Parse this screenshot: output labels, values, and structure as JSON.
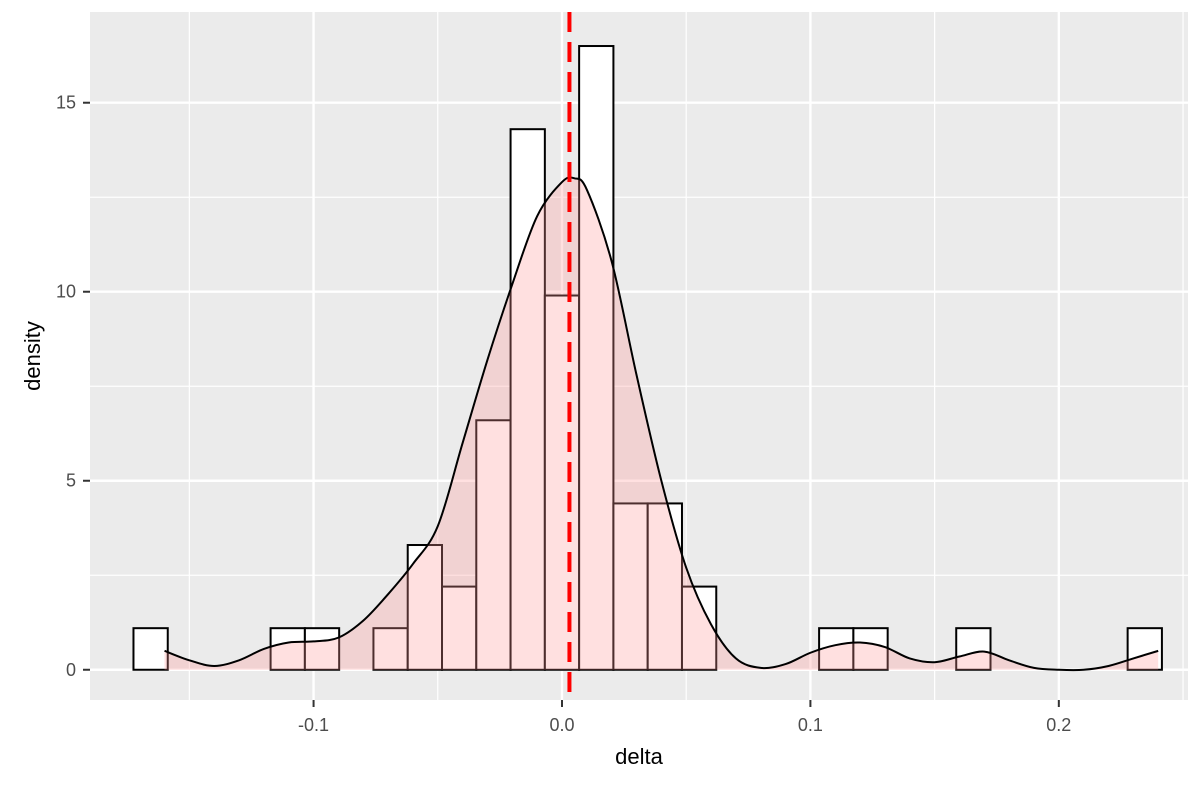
{
  "chart_data": {
    "type": "histogram",
    "title": "",
    "xlabel": "delta",
    "ylabel": "density",
    "xlim": [
      -0.19,
      0.252
    ],
    "ylim": [
      -0.8,
      17.4
    ],
    "x_ticks": [
      -0.1,
      0.0,
      0.1,
      0.2
    ],
    "x_tick_labels": [
      "-0.1",
      "0.0",
      "0.1",
      "0.2"
    ],
    "y_ticks": [
      0,
      5,
      10,
      15
    ],
    "y_tick_labels": [
      "0",
      "5",
      "10",
      "15"
    ],
    "grid": true,
    "bin_width": 0.0138,
    "bins": [
      {
        "x0": -0.1725,
        "x1": -0.1587,
        "density": 1.1
      },
      {
        "x0": -0.1587,
        "x1": -0.1449,
        "density": 0
      },
      {
        "x0": -0.1449,
        "x1": -0.1311,
        "density": 0
      },
      {
        "x0": -0.1311,
        "x1": -0.1173,
        "density": 0
      },
      {
        "x0": -0.1173,
        "x1": -0.1035,
        "density": 1.1
      },
      {
        "x0": -0.1035,
        "x1": -0.0897,
        "density": 1.1
      },
      {
        "x0": -0.0897,
        "x1": -0.0759,
        "density": 0
      },
      {
        "x0": -0.0759,
        "x1": -0.0621,
        "density": 1.1
      },
      {
        "x0": -0.0621,
        "x1": -0.0483,
        "density": 3.3
      },
      {
        "x0": -0.0483,
        "x1": -0.0345,
        "density": 2.2
      },
      {
        "x0": -0.0345,
        "x1": -0.0207,
        "density": 6.6
      },
      {
        "x0": -0.0207,
        "x1": -0.0069,
        "density": 14.3
      },
      {
        "x0": -0.0069,
        "x1": 0.0069,
        "density": 9.9
      },
      {
        "x0": 0.0069,
        "x1": 0.0207,
        "density": 16.5
      },
      {
        "x0": 0.0207,
        "x1": 0.0345,
        "density": 4.4
      },
      {
        "x0": 0.0345,
        "x1": 0.0483,
        "density": 4.4
      },
      {
        "x0": 0.0483,
        "x1": 0.0621,
        "density": 2.2
      },
      {
        "x0": 0.0621,
        "x1": 0.0759,
        "density": 0
      },
      {
        "x0": 0.0759,
        "x1": 0.0897,
        "density": 0
      },
      {
        "x0": 0.0897,
        "x1": 0.1035,
        "density": 0
      },
      {
        "x0": 0.1035,
        "x1": 0.1173,
        "density": 1.1
      },
      {
        "x0": 0.1173,
        "x1": 0.1311,
        "density": 1.1
      },
      {
        "x0": 0.1311,
        "x1": 0.1449,
        "density": 0
      },
      {
        "x0": 0.1449,
        "x1": 0.1587,
        "density": 0
      },
      {
        "x0": 0.1587,
        "x1": 0.1725,
        "density": 1.1
      },
      {
        "x0": 0.1725,
        "x1": 0.1863,
        "density": 0
      },
      {
        "x0": 0.1863,
        "x1": 0.2001,
        "density": 0
      },
      {
        "x0": 0.2001,
        "x1": 0.2139,
        "density": 0
      },
      {
        "x0": 0.2139,
        "x1": 0.2277,
        "density": 0
      },
      {
        "x0": 0.2277,
        "x1": 0.2415,
        "density": 1.1
      }
    ],
    "density_curve": {
      "x": [
        -0.16,
        -0.15,
        -0.14,
        -0.13,
        -0.12,
        -0.11,
        -0.1,
        -0.09,
        -0.08,
        -0.07,
        -0.06,
        -0.05,
        -0.04,
        -0.03,
        -0.02,
        -0.01,
        0.0,
        0.005,
        0.01,
        0.02,
        0.03,
        0.04,
        0.05,
        0.06,
        0.07,
        0.08,
        0.09,
        0.1,
        0.11,
        0.12,
        0.13,
        0.14,
        0.15,
        0.16,
        0.17,
        0.18,
        0.19,
        0.2,
        0.21,
        0.22,
        0.23,
        0.24
      ],
      "y": [
        0.5,
        0.25,
        0.1,
        0.25,
        0.55,
        0.72,
        0.75,
        0.85,
        1.3,
        2.0,
        2.8,
        3.8,
        6.0,
        8.2,
        10.2,
        12.0,
        12.9,
        13.0,
        12.7,
        10.8,
        7.8,
        5.0,
        2.7,
        1.2,
        0.3,
        0.05,
        0.15,
        0.45,
        0.65,
        0.72,
        0.6,
        0.3,
        0.2,
        0.35,
        0.48,
        0.25,
        0.05,
        0.0,
        0.0,
        0.1,
        0.3,
        0.5
      ]
    },
    "vline": {
      "x": 0.003,
      "style": "dashed"
    },
    "colors": {
      "panel_background": "#ebebeb",
      "grid": "#ffffff",
      "bar_fill": "#ffffff",
      "bar_stroke": "#000000",
      "density_fill": "#ff9999",
      "density_stroke": "#000000",
      "vline": "#ff0000",
      "axis_text": "#4d4d4d",
      "axis_title": "#000000"
    }
  }
}
